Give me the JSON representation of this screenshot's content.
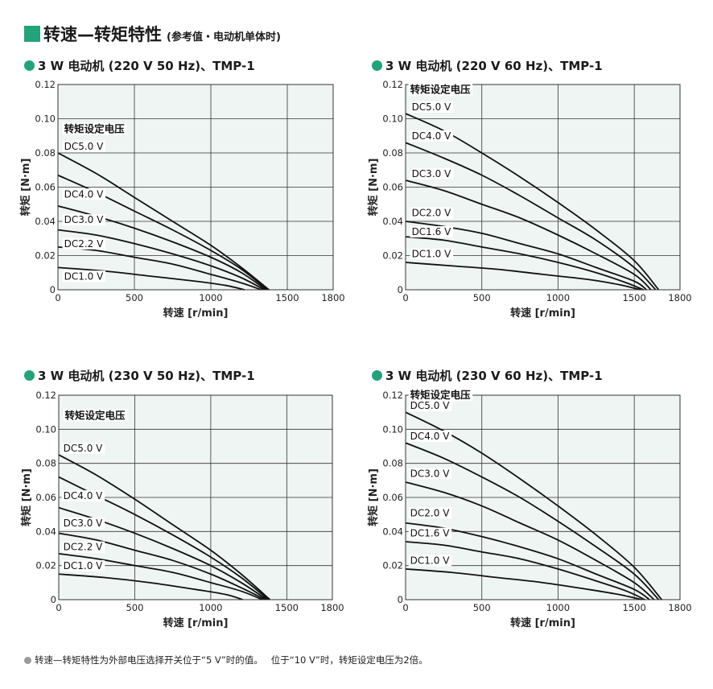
{
  "heading": {
    "title": "转速—转矩特性",
    "subtitle": "(参考值・电动机单体时)",
    "accent_color": "#22a37a"
  },
  "footnote": {
    "text1": "转速—转矩特性为外部电压选择开关位于“5 V”时的值。",
    "text2": "位于“10 V”时，转矩设定电压为2倍。"
  },
  "chart_style": {
    "plot_background": "#eef5f2",
    "line_color": "#111111",
    "grid_color": "#333333"
  },
  "chart_data": [
    {
      "type": "line",
      "title": "3 W 电动机 (220 V 50 Hz)、",
      "title_model": "TMP-1",
      "xlabel": "转速 [r/min]",
      "ylabel": "转矩 [N·m]",
      "xlim": [
        0,
        1800
      ],
      "ylim": [
        0,
        0.12
      ],
      "x_ticks": [
        0,
        500,
        1000,
        1500,
        1800
      ],
      "y_ticks": [
        0,
        0.02,
        0.04,
        0.06,
        0.08,
        0.1,
        0.12
      ],
      "legend_title": "转矩设定电压",
      "series": [
        {
          "name": "DC5.0 V",
          "points": [
            [
              0,
              0.08
            ],
            [
              250,
              0.068
            ],
            [
              500,
              0.054
            ],
            [
              750,
              0.04
            ],
            [
              1000,
              0.026
            ],
            [
              1200,
              0.013
            ],
            [
              1380,
              0.0
            ]
          ]
        },
        {
          "name": "",
          "points": [
            [
              0,
              0.067
            ],
            [
              250,
              0.057
            ],
            [
              500,
              0.046
            ],
            [
              750,
              0.035
            ],
            [
              1000,
              0.023
            ],
            [
              1200,
              0.012
            ],
            [
              1370,
              0.0
            ]
          ]
        },
        {
          "name": "DC4.0 V",
          "points": [
            [
              0,
              0.049
            ],
            [
              250,
              0.043
            ],
            [
              500,
              0.036
            ],
            [
              750,
              0.028
            ],
            [
              1000,
              0.019
            ],
            [
              1200,
              0.01
            ],
            [
              1360,
              0.0
            ]
          ]
        },
        {
          "name": "DC3.0 V",
          "points": [
            [
              0,
              0.035
            ],
            [
              250,
              0.032
            ],
            [
              500,
              0.027
            ],
            [
              750,
              0.021
            ],
            [
              1000,
              0.014
            ],
            [
              1200,
              0.007
            ],
            [
              1350,
              0.0
            ]
          ]
        },
        {
          "name": "DC2.2 V",
          "points": [
            [
              0,
              0.025
            ],
            [
              250,
              0.023
            ],
            [
              500,
              0.019
            ],
            [
              750,
              0.015
            ],
            [
              1000,
              0.009
            ],
            [
              1200,
              0.004
            ],
            [
              1330,
              0.0
            ]
          ]
        },
        {
          "name": "DC1.0 V",
          "points": [
            [
              0,
              0.013
            ],
            [
              300,
              0.011
            ],
            [
              600,
              0.008
            ],
            [
              900,
              0.005
            ],
            [
              1100,
              0.0025
            ],
            [
              1220,
              0.0
            ]
          ]
        }
      ],
      "label_positions": [
        {
          "text": "转矩设定电压",
          "x": 40,
          "y": 0.092
        },
        {
          "text": "DC5.0 V",
          "x": 40,
          "y": 0.082
        },
        {
          "text": "DC4.0 V",
          "x": 40,
          "y": 0.054
        },
        {
          "text": "DC3.0 V",
          "x": 40,
          "y": 0.039
        },
        {
          "text": "DC2.2 V",
          "x": 40,
          "y": 0.025
        },
        {
          "text": "DC1.0 V",
          "x": 40,
          "y": 0.006
        }
      ]
    },
    {
      "type": "line",
      "title": "3 W 电动机 (220 V 60 Hz)、",
      "title_model": "TMP-1",
      "xlabel": "转速 [r/min]",
      "ylabel": "转矩 [N·m]",
      "xlim": [
        0,
        1800
      ],
      "ylim": [
        0,
        0.12
      ],
      "x_ticks": [
        0,
        500,
        1000,
        1500,
        1800
      ],
      "y_ticks": [
        0,
        0.02,
        0.04,
        0.06,
        0.08,
        0.1,
        0.12
      ],
      "legend_title": "转矩设定电压",
      "series": [
        {
          "name": "DC5.0 V",
          "points": [
            [
              0,
              0.103
            ],
            [
              250,
              0.093
            ],
            [
              500,
              0.08
            ],
            [
              750,
              0.066
            ],
            [
              1000,
              0.051
            ],
            [
              1250,
              0.035
            ],
            [
              1500,
              0.017
            ],
            [
              1660,
              0.0
            ]
          ]
        },
        {
          "name": "DC4.0 V",
          "points": [
            [
              0,
              0.086
            ],
            [
              250,
              0.077
            ],
            [
              500,
              0.067
            ],
            [
              750,
              0.055
            ],
            [
              1000,
              0.042
            ],
            [
              1250,
              0.029
            ],
            [
              1500,
              0.013
            ],
            [
              1640,
              0.0
            ]
          ]
        },
        {
          "name": "DC3.0 V",
          "points": [
            [
              0,
              0.064
            ],
            [
              250,
              0.058
            ],
            [
              500,
              0.05
            ],
            [
              750,
              0.042
            ],
            [
              1000,
              0.032
            ],
            [
              1250,
              0.021
            ],
            [
              1500,
              0.009
            ],
            [
              1610,
              0.0
            ]
          ]
        },
        {
          "name": "DC2.0 V",
          "points": [
            [
              0,
              0.04
            ],
            [
              250,
              0.037
            ],
            [
              500,
              0.033
            ],
            [
              750,
              0.027
            ],
            [
              1000,
              0.021
            ],
            [
              1250,
              0.013
            ],
            [
              1500,
              0.005
            ],
            [
              1580,
              0.0
            ]
          ]
        },
        {
          "name": "DC1.6 V",
          "points": [
            [
              0,
              0.031
            ],
            [
              250,
              0.029
            ],
            [
              500,
              0.025
            ],
            [
              750,
              0.021
            ],
            [
              1000,
              0.016
            ],
            [
              1250,
              0.01
            ],
            [
              1450,
              0.004
            ],
            [
              1560,
              0.0
            ]
          ]
        },
        {
          "name": "DC1.0 V",
          "points": [
            [
              0,
              0.016
            ],
            [
              300,
              0.014
            ],
            [
              600,
              0.012
            ],
            [
              900,
              0.009
            ],
            [
              1200,
              0.006
            ],
            [
              1400,
              0.003
            ],
            [
              1540,
              0.0
            ]
          ]
        }
      ],
      "label_positions": [
        {
          "text": "转矩设定电压",
          "x": 30,
          "y": 0.115
        },
        {
          "text": "DC5.0 V",
          "x": 40,
          "y": 0.105
        },
        {
          "text": "DC4.0 V",
          "x": 40,
          "y": 0.088
        },
        {
          "text": "DC3.0 V",
          "x": 40,
          "y": 0.066
        },
        {
          "text": "DC2.0 V",
          "x": 40,
          "y": 0.043
        },
        {
          "text": "DC1.6 V",
          "x": 40,
          "y": 0.032
        },
        {
          "text": "DC1.0 V",
          "x": 40,
          "y": 0.019
        }
      ]
    },
    {
      "type": "line",
      "title": "3 W 电动机 (230 V 50 Hz)、",
      "title_model": "TMP-1",
      "xlabel": "转速 [r/min]",
      "ylabel": "转矩 [N·m]",
      "xlim": [
        0,
        1800
      ],
      "ylim": [
        0,
        0.12
      ],
      "x_ticks": [
        0,
        500,
        1000,
        1500,
        1800
      ],
      "y_ticks": [
        0,
        0.02,
        0.04,
        0.06,
        0.08,
        0.1,
        0.12
      ],
      "legend_title": "转矩设定电压",
      "series": [
        {
          "name": "DC5.0 V",
          "points": [
            [
              0,
              0.085
            ],
            [
              250,
              0.073
            ],
            [
              500,
              0.059
            ],
            [
              750,
              0.044
            ],
            [
              1000,
              0.029
            ],
            [
              1200,
              0.015
            ],
            [
              1390,
              0.0
            ]
          ]
        },
        {
          "name": "",
          "points": [
            [
              0,
              0.072
            ],
            [
              250,
              0.061
            ],
            [
              500,
              0.05
            ],
            [
              750,
              0.038
            ],
            [
              1000,
              0.025
            ],
            [
              1200,
              0.013
            ],
            [
              1380,
              0.0
            ]
          ]
        },
        {
          "name": "DC4.0 V",
          "points": [
            [
              0,
              0.054
            ],
            [
              250,
              0.047
            ],
            [
              500,
              0.039
            ],
            [
              750,
              0.03
            ],
            [
              1000,
              0.02
            ],
            [
              1200,
              0.01
            ],
            [
              1370,
              0.0
            ]
          ]
        },
        {
          "name": "DC3.0 V",
          "points": [
            [
              0,
              0.039
            ],
            [
              250,
              0.035
            ],
            [
              500,
              0.029
            ],
            [
              750,
              0.023
            ],
            [
              1000,
              0.015
            ],
            [
              1200,
              0.007
            ],
            [
              1360,
              0.0
            ]
          ]
        },
        {
          "name": "DC2.2 V",
          "points": [
            [
              0,
              0.027
            ],
            [
              250,
              0.024
            ],
            [
              500,
              0.02
            ],
            [
              750,
              0.016
            ],
            [
              1000,
              0.01
            ],
            [
              1200,
              0.005
            ],
            [
              1340,
              0.0
            ]
          ]
        },
        {
          "name": "DC1.0 V",
          "points": [
            [
              0,
              0.015
            ],
            [
              300,
              0.013
            ],
            [
              600,
              0.01
            ],
            [
              900,
              0.006
            ],
            [
              1100,
              0.003
            ],
            [
              1210,
              0.0
            ]
          ]
        }
      ],
      "label_positions": [
        {
          "text": "转矩设定电压",
          "x": 40,
          "y": 0.106
        },
        {
          "text": "DC5.0 V",
          "x": 30,
          "y": 0.087
        },
        {
          "text": "DC4.0 V",
          "x": 30,
          "y": 0.059
        },
        {
          "text": "DC3.0 V",
          "x": 30,
          "y": 0.043
        },
        {
          "text": "DC2.2 V",
          "x": 30,
          "y": 0.029
        },
        {
          "text": "DC1.0 V",
          "x": 30,
          "y": 0.018
        }
      ]
    },
    {
      "type": "line",
      "title": "3 W 电动机 (230 V 60 Hz)、",
      "title_model": "TMP-1",
      "xlabel": "转速 [r/min]",
      "ylabel": "转矩 [N·m]",
      "xlim": [
        0,
        1800
      ],
      "ylim": [
        0,
        0.12
      ],
      "x_ticks": [
        0,
        500,
        1000,
        1500,
        1800
      ],
      "y_ticks": [
        0,
        0.02,
        0.04,
        0.06,
        0.08,
        0.1,
        0.12
      ],
      "legend_title": "转矩设定电压",
      "series": [
        {
          "name": "DC5.0 V",
          "points": [
            [
              0,
              0.11
            ],
            [
              250,
              0.099
            ],
            [
              500,
              0.086
            ],
            [
              750,
              0.071
            ],
            [
              1000,
              0.055
            ],
            [
              1250,
              0.038
            ],
            [
              1500,
              0.019
            ],
            [
              1680,
              0.0
            ]
          ]
        },
        {
          "name": "DC4.0 V",
          "points": [
            [
              0,
              0.092
            ],
            [
              250,
              0.083
            ],
            [
              500,
              0.072
            ],
            [
              750,
              0.06
            ],
            [
              1000,
              0.046
            ],
            [
              1250,
              0.031
            ],
            [
              1500,
              0.015
            ],
            [
              1660,
              0.0
            ]
          ]
        },
        {
          "name": "DC3.0 V",
          "points": [
            [
              0,
              0.069
            ],
            [
              250,
              0.063
            ],
            [
              500,
              0.055
            ],
            [
              750,
              0.045
            ],
            [
              1000,
              0.035
            ],
            [
              1250,
              0.023
            ],
            [
              1500,
              0.01
            ],
            [
              1630,
              0.0
            ]
          ]
        },
        {
          "name": "DC2.0 V",
          "points": [
            [
              0,
              0.045
            ],
            [
              250,
              0.042
            ],
            [
              500,
              0.037
            ],
            [
              750,
              0.031
            ],
            [
              1000,
              0.024
            ],
            [
              1250,
              0.015
            ],
            [
              1500,
              0.006
            ],
            [
              1600,
              0.0
            ]
          ]
        },
        {
          "name": "DC1.6 V",
          "points": [
            [
              0,
              0.034
            ],
            [
              250,
              0.032
            ],
            [
              500,
              0.028
            ],
            [
              750,
              0.024
            ],
            [
              1000,
              0.018
            ],
            [
              1250,
              0.011
            ],
            [
              1450,
              0.005
            ],
            [
              1570,
              0.0
            ]
          ]
        },
        {
          "name": "DC1.0 V",
          "points": [
            [
              0,
              0.018
            ],
            [
              300,
              0.016
            ],
            [
              600,
              0.013
            ],
            [
              900,
              0.01
            ],
            [
              1200,
              0.006
            ],
            [
              1400,
              0.003
            ],
            [
              1550,
              0.0
            ]
          ]
        }
      ],
      "label_positions": [
        {
          "text": "转矩设定电压",
          "x": 30,
          "y": 0.118
        },
        {
          "text": "DC5.0 V",
          "x": 30,
          "y": 0.112
        },
        {
          "text": "DC4.0 V",
          "x": 30,
          "y": 0.094
        },
        {
          "text": "DC3.0 V",
          "x": 30,
          "y": 0.072
        },
        {
          "text": "DC2.0 V",
          "x": 30,
          "y": 0.049
        },
        {
          "text": "DC1.6 V",
          "x": 30,
          "y": 0.037
        },
        {
          "text": "DC1.0 V",
          "x": 30,
          "y": 0.021
        }
      ]
    }
  ]
}
